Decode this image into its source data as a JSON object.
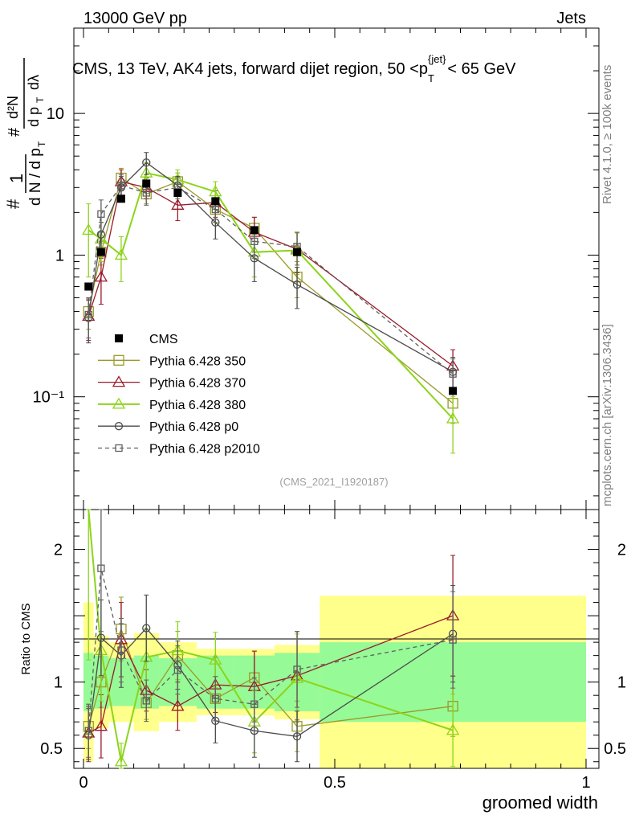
{
  "header": {
    "left": "13000 GeV pp",
    "right": "Jets",
    "title_main": "CMS, 13 TeV, AK4 jets, forward dijet region, 50 <p",
    "title_sub": "T",
    "title_sup": "{jet}",
    "title_end": "< 65 GeV"
  },
  "side": {
    "rivet": "Rivet 4.1.0, ≥ 100k events",
    "mcplots": "mcplots.cern.ch [arXiv:1306.3436]"
  },
  "watermark": "(CMS_2021_I1920187)",
  "ylabel_ratio": "Ratio to CMS",
  "xlabel": "groomed width",
  "chart_data": {
    "type": "line",
    "x_label": "groomed width",
    "xlim": [
      0,
      1
    ],
    "main": {
      "yscale": "log",
      "ylim": [
        0.016,
        40
      ],
      "yticks": [
        {
          "v": 10,
          "label": "10"
        },
        {
          "v": 1,
          "label": "1"
        },
        {
          "v": 0.1,
          "label": "10⁻¹"
        }
      ]
    },
    "ratio": {
      "ylim": [
        0.35,
        2.3
      ],
      "yticks": [
        {
          "v": 2,
          "label": "2"
        },
        {
          "v": 1,
          "label": "1"
        },
        {
          "v": 0.5,
          "label": "0.5"
        }
      ]
    },
    "x_ticks": [
      {
        "v": 0,
        "label": "0"
      },
      {
        "v": 0.5,
        "label": "0.5"
      },
      {
        "v": 1,
        "label": "1"
      }
    ],
    "bins": [
      [
        0,
        0.02
      ],
      [
        0.02,
        0.05
      ],
      [
        0.05,
        0.1
      ],
      [
        0.1,
        0.15
      ],
      [
        0.15,
        0.225
      ],
      [
        0.225,
        0.3
      ],
      [
        0.3,
        0.38
      ],
      [
        0.38,
        0.47
      ],
      [
        0.47,
        1.0
      ]
    ],
    "bands": {
      "green_half": [
        0.22,
        0.2,
        0.18,
        0.2,
        0.18,
        0.2,
        0.2,
        0.22,
        0.3
      ],
      "yellow_half": [
        0.6,
        0.35,
        0.3,
        0.37,
        0.3,
        0.25,
        0.25,
        0.28,
        0.65
      ]
    },
    "x": [
      0.01,
      0.035,
      0.075,
      0.125,
      0.1875,
      0.2625,
      0.34,
      0.425,
      0.735
    ],
    "data": {
      "name": "CMS",
      "y": [
        0.6,
        1.05,
        2.5,
        3.2,
        2.75,
        2.4,
        1.5,
        1.05,
        0.11
      ]
    },
    "series": [
      {
        "name": "Pythia 6.428 350",
        "color": "#9a9a2a",
        "marker": "square-open",
        "dash": "solid",
        "y": [
          0.4,
          1.05,
          3.5,
          2.7,
          3.3,
          2.1,
          1.55,
          0.7,
          0.09
        ],
        "yerr": [
          0.1,
          0.2,
          0.6,
          0.4,
          0.5,
          0.4,
          0.3,
          0.2,
          0.025
        ]
      },
      {
        "name": "Pythia 6.428 370",
        "color": "#9a1a2a",
        "marker": "triangle-open",
        "dash": "solid",
        "y": [
          0.37,
          0.7,
          3.3,
          3.0,
          2.25,
          2.35,
          1.45,
          1.1,
          0.165
        ],
        "yerr": [
          0.12,
          0.25,
          0.7,
          0.5,
          0.5,
          0.5,
          0.4,
          0.35,
          0.05
        ]
      },
      {
        "name": "Pythia 6.428 380",
        "color": "#8cd41a",
        "marker": "triangle-open",
        "dash": "solid",
        "y": [
          1.5,
          1.3,
          1.0,
          3.8,
          3.4,
          2.8,
          1.05,
          1.08,
          0.07
        ],
        "yerr": [
          0.8,
          0.4,
          0.35,
          0.7,
          0.6,
          0.5,
          0.35,
          0.35,
          0.03
        ]
      },
      {
        "name": "Pythia 6.428 p0",
        "color": "#4a4a4a",
        "marker": "circle-open",
        "dash": "solid",
        "y": [
          0.36,
          1.4,
          3.0,
          4.5,
          3.1,
          1.7,
          0.95,
          0.62,
          0.15
        ],
        "yerr": [
          0.12,
          0.3,
          0.6,
          0.8,
          0.5,
          0.4,
          0.3,
          0.2,
          0.04
        ]
      },
      {
        "name": "Pythia 6.428 p2010",
        "color": "#606060",
        "marker": "square-open-small",
        "dash": "dashed",
        "y": [
          0.38,
          1.95,
          3.1,
          2.75,
          3.0,
          2.1,
          1.25,
          1.15,
          0.145
        ],
        "yerr": [
          0.12,
          0.5,
          0.6,
          0.5,
          0.5,
          0.4,
          0.3,
          0.3,
          0.04
        ]
      }
    ]
  }
}
